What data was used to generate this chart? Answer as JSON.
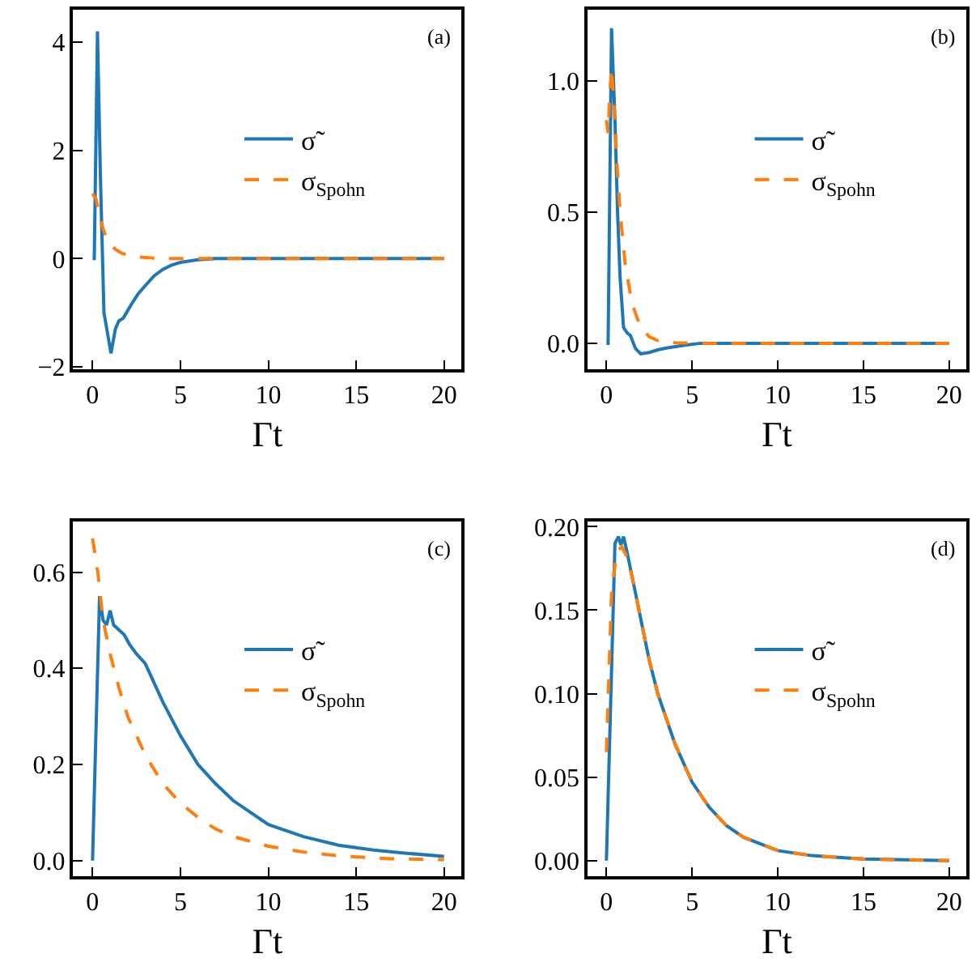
{
  "chart_data": [
    {
      "type": "line",
      "xlabel": "Γt",
      "annotations": [
        "(a)"
      ],
      "legend": "right",
      "xlim": [
        -1.1,
        21
      ],
      "xticks": [
        0,
        5,
        10,
        15,
        20
      ],
      "ylim": [
        -2.05,
        4.6
      ],
      "yticks": [
        {
          "value": -2,
          "label": "−2"
        },
        0,
        2,
        4
      ],
      "series": [
        {
          "name": "σ̃",
          "color": "#1f77b4",
          "line_style": "solid",
          "x": [
            0,
            0.1,
            0.28,
            0.45,
            0.65,
            1.05,
            1.3,
            1.5,
            1.75,
            2.2,
            2.6,
            3.0,
            3.5,
            4.0,
            4.5,
            5.0,
            6.0,
            7.0,
            10,
            15,
            20
          ],
          "values": [
            0,
            0,
            4.2,
            1.5,
            -1.0,
            -1.75,
            -1.3,
            -1.15,
            -1.1,
            -0.85,
            -0.65,
            -0.5,
            -0.32,
            -0.2,
            -0.12,
            -0.07,
            -0.02,
            0,
            0,
            0,
            0
          ]
        },
        {
          "name": "σ$_{Spohn}$",
          "color": "#ff7f0e",
          "line_style": "dashed",
          "x": [
            0,
            0.2,
            0.4,
            0.6,
            0.8,
            1.0,
            1.3,
            1.6,
            2.0,
            2.5,
            3.0,
            4.0,
            6.0,
            10,
            15,
            20
          ],
          "values": [
            1.2,
            1.1,
            0.8,
            0.55,
            0.38,
            0.27,
            0.17,
            0.11,
            0.06,
            0.03,
            0.02,
            0,
            0,
            0,
            0,
            0
          ]
        }
      ]
    },
    {
      "type": "line",
      "xlabel": "Γt",
      "annotations": [
        "(b)"
      ],
      "legend": "right",
      "xlim": [
        -1.1,
        21
      ],
      "xticks": [
        0,
        5,
        10,
        15,
        20
      ],
      "ylim": [
        -0.1,
        1.27
      ],
      "yticks": [
        {
          "value": 0,
          "label": "0.0"
        },
        0.5,
        {
          "value": 1,
          "label": "1.0"
        }
      ],
      "series": [
        {
          "name": "σ̃",
          "color": "#1f77b4",
          "line_style": "solid",
          "x": [
            0,
            0.1,
            0.3,
            0.5,
            0.65,
            0.8,
            1.0,
            1.2,
            1.4,
            1.7,
            2.0,
            2.5,
            3.0,
            3.5,
            4.5,
            5.5,
            10,
            15,
            20
          ],
          "values": [
            0,
            0,
            1.2,
            0.85,
            0.5,
            0.25,
            0.06,
            0.04,
            0.03,
            -0.02,
            -0.04,
            -0.035,
            -0.025,
            -0.018,
            -0.008,
            0,
            0,
            0,
            0
          ]
        },
        {
          "name": "σ$_{Spohn}$",
          "color": "#ff7f0e",
          "line_style": "dashed",
          "x": [
            0,
            0.1,
            0.2,
            0.3,
            0.45,
            0.6,
            0.8,
            1.1,
            1.5,
            2.0,
            2.5,
            3.0,
            4.0,
            6.0,
            10,
            15,
            20
          ],
          "values": [
            0.85,
            0.8,
            0.95,
            1.05,
            0.9,
            0.7,
            0.5,
            0.3,
            0.15,
            0.06,
            0.025,
            0.01,
            0.002,
            0,
            0,
            0,
            0
          ]
        }
      ]
    },
    {
      "type": "line",
      "xlabel": "Γt",
      "annotations": [
        "(c)"
      ],
      "legend": "right",
      "xlim": [
        -1.1,
        21
      ],
      "xticks": [
        0,
        5,
        10,
        15,
        20
      ],
      "ylim": [
        -0.033,
        0.705
      ],
      "yticks": [
        {
          "value": 0,
          "label": "0.0"
        },
        0.2,
        0.4,
        0.6
      ],
      "series": [
        {
          "name": "σ̃",
          "color": "#1f77b4",
          "line_style": "solid",
          "x": [
            0,
            0.4,
            0.6,
            0.8,
            1.0,
            1.2,
            1.5,
            1.8,
            2.1,
            2.5,
            3.0,
            3.5,
            4.0,
            5.0,
            6.0,
            7.0,
            8.0,
            9.0,
            10,
            12,
            14,
            16,
            18,
            20
          ],
          "values": [
            0,
            0.55,
            0.5,
            0.49,
            0.52,
            0.49,
            0.48,
            0.47,
            0.45,
            0.43,
            0.41,
            0.37,
            0.33,
            0.26,
            0.2,
            0.16,
            0.125,
            0.1,
            0.075,
            0.05,
            0.032,
            0.022,
            0.015,
            0.009
          ]
        },
        {
          "name": "σ$_{Spohn}$",
          "color": "#ff7f0e",
          "line_style": "dashed",
          "x": [
            0,
            0.3,
            0.6,
            1.0,
            1.5,
            2.0,
            3.0,
            4.0,
            5.0,
            6.0,
            7.0,
            8.0,
            10,
            12,
            14,
            17,
            20
          ],
          "values": [
            0.67,
            0.6,
            0.5,
            0.43,
            0.36,
            0.3,
            0.22,
            0.16,
            0.12,
            0.09,
            0.066,
            0.05,
            0.03,
            0.018,
            0.01,
            0.004,
            0.002
          ]
        }
      ]
    },
    {
      "type": "line",
      "xlabel": "Γt",
      "annotations": [
        "(d)"
      ],
      "legend": "right",
      "xlim": [
        -1.1,
        21
      ],
      "xticks": [
        0,
        5,
        10,
        15,
        20
      ],
      "ylim": [
        -0.0095,
        0.203
      ],
      "yticks": [
        {
          "value": 0,
          "label": "0.00"
        },
        0.05,
        {
          "value": 0.1,
          "label": "0.10"
        },
        0.15,
        {
          "value": 0.2,
          "label": "0.20"
        }
      ],
      "series": [
        {
          "name": "σ̃",
          "color": "#1f77b4",
          "line_style": "solid",
          "x": [
            0,
            0.5,
            0.7,
            0.85,
            1.0,
            1.2,
            1.5,
            2.0,
            2.5,
            3.0,
            4.0,
            5.0,
            6.0,
            7.0,
            8.0,
            10,
            12,
            15,
            20
          ],
          "values": [
            0,
            0.19,
            0.194,
            0.189,
            0.194,
            0.185,
            0.17,
            0.145,
            0.12,
            0.1,
            0.07,
            0.047,
            0.032,
            0.021,
            0.014,
            0.006,
            0.003,
            0.001,
            0
          ]
        },
        {
          "name": "σ$_{Spohn}$",
          "color": "#ff7f0e",
          "line_style": "dashed",
          "x": [
            0,
            0.3,
            0.6,
            0.9,
            1.2,
            1.5,
            2.0,
            2.5,
            3.0,
            4.0,
            5.0,
            6.0,
            7.0,
            8.0,
            10,
            12,
            15,
            20
          ],
          "values": [
            0.065,
            0.16,
            0.185,
            0.188,
            0.182,
            0.17,
            0.145,
            0.12,
            0.1,
            0.07,
            0.047,
            0.032,
            0.021,
            0.014,
            0.006,
            0.003,
            0.001,
            0
          ]
        }
      ]
    }
  ]
}
